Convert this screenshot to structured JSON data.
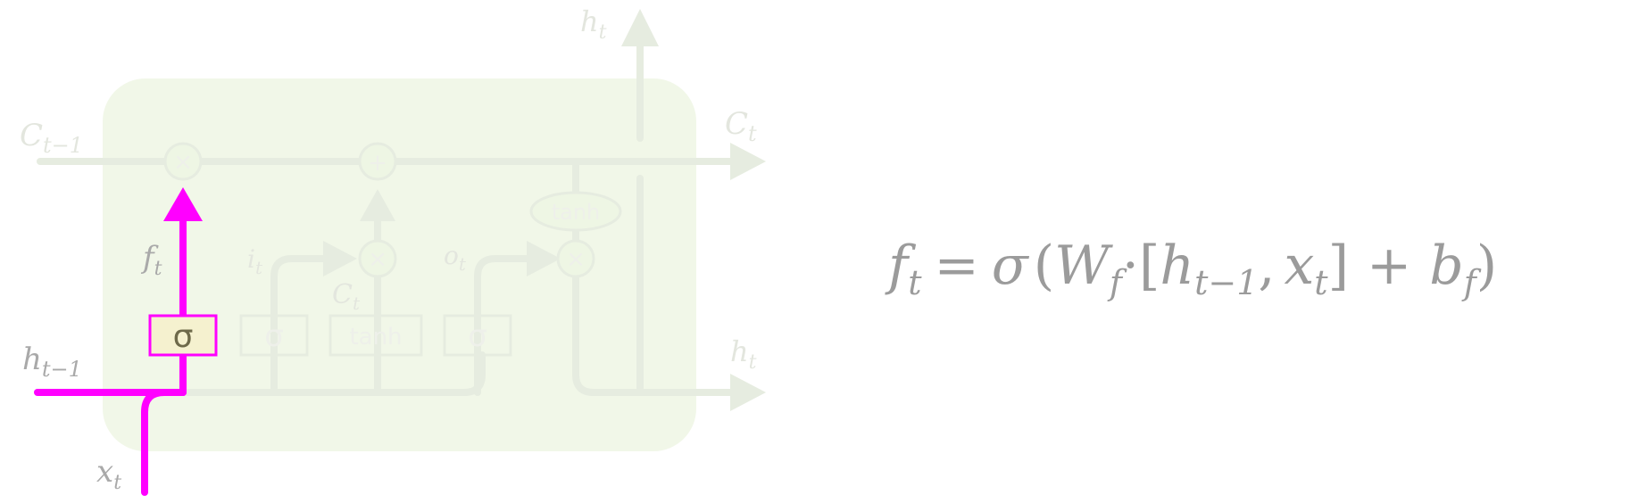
{
  "colors": {
    "highlight": "#ff00ff",
    "cell_fill": "#eef6e4",
    "faint_line": "#e8eee0",
    "faint_text": "#eef0ea",
    "gate_fill": "#f5f1cf",
    "equation_text": "#9b9b9b"
  },
  "labels": {
    "c_prev": {
      "base": "C",
      "sub": "t−1"
    },
    "c_next": {
      "base": "C",
      "sub": "t"
    },
    "h_prev": {
      "base": "h",
      "sub": "t−1"
    },
    "h_top": {
      "base": "h",
      "sub": "t"
    },
    "h_right": {
      "base": "h",
      "sub": "t"
    },
    "x_in": {
      "base": "x",
      "sub": "t"
    },
    "f_gate": {
      "base": "f",
      "sub": "t"
    },
    "i_gate": {
      "base": "i",
      "sub": "t"
    },
    "c_tilde": {
      "base": "C",
      "sub": "t"
    },
    "o_gate": {
      "base": "o",
      "sub": "t"
    }
  },
  "ops": {
    "multiply": "×",
    "add": "+",
    "tanh": "tanh",
    "sigma": "σ"
  },
  "equation": {
    "f": "f",
    "f_sub": "t",
    "equals": "=",
    "sigma": "σ",
    "lparen": "(",
    "W": "W",
    "W_sub": "f",
    "dot": "·",
    "lbracket": "[",
    "h": "h",
    "h_sub": "t−1",
    "comma": ",",
    "x": "x",
    "x_sub": "t",
    "rbracket": "]",
    "plus": "+",
    "b": "b",
    "b_sub": "f",
    "rparen": ")"
  }
}
